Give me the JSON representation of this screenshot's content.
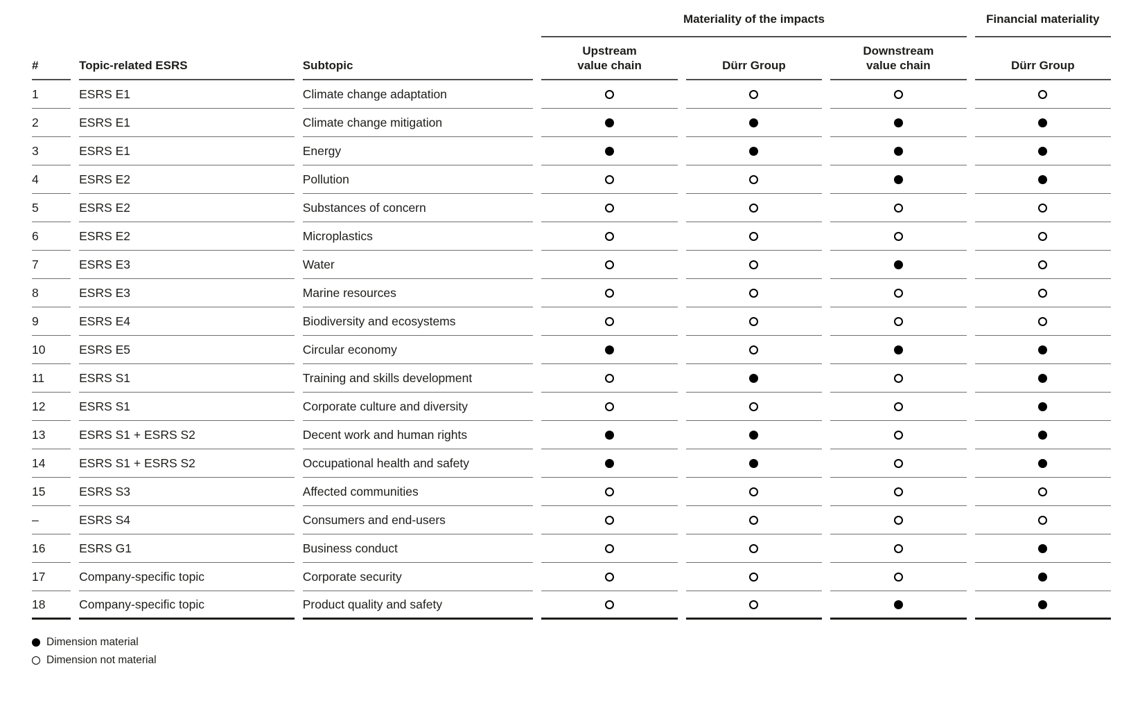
{
  "table": {
    "group_headers": {
      "impacts": "Materiality of the impacts",
      "financial": "Financial materiality"
    },
    "columns": {
      "num": "#",
      "esrs": "Topic-related ESRS",
      "subtopic": "Subtopic",
      "upstream_line1": "Upstream",
      "upstream_line2": "value chain",
      "durr_impacts": "Dürr Group",
      "downstream_line1": "Downstream",
      "downstream_line2": "value chain",
      "durr_financial": "Dürr Group"
    },
    "rows": [
      {
        "num": "1",
        "esrs": "ESRS E1",
        "subtopic": "Climate change adaptation",
        "dots": [
          "empty",
          "empty",
          "empty",
          "empty"
        ]
      },
      {
        "num": "2",
        "esrs": "ESRS E1",
        "subtopic": "Climate change mitigation",
        "dots": [
          "filled",
          "filled",
          "filled",
          "filled"
        ]
      },
      {
        "num": "3",
        "esrs": "ESRS E1",
        "subtopic": "Energy",
        "dots": [
          "filled",
          "filled",
          "filled",
          "filled"
        ]
      },
      {
        "num": "4",
        "esrs": "ESRS E2",
        "subtopic": "Pollution",
        "dots": [
          "empty",
          "empty",
          "filled",
          "filled"
        ]
      },
      {
        "num": "5",
        "esrs": "ESRS E2",
        "subtopic": "Substances of concern",
        "dots": [
          "empty",
          "empty",
          "empty",
          "empty"
        ]
      },
      {
        "num": "6",
        "esrs": "ESRS E2",
        "subtopic": "Microplastics",
        "dots": [
          "empty",
          "empty",
          "empty",
          "empty"
        ]
      },
      {
        "num": "7",
        "esrs": "ESRS E3",
        "subtopic": "Water",
        "dots": [
          "empty",
          "empty",
          "filled",
          "empty"
        ]
      },
      {
        "num": "8",
        "esrs": "ESRS E3",
        "subtopic": "Marine resources",
        "dots": [
          "empty",
          "empty",
          "empty",
          "empty"
        ]
      },
      {
        "num": "9",
        "esrs": "ESRS E4",
        "subtopic": "Biodiversity and ecosystems",
        "dots": [
          "empty",
          "empty",
          "empty",
          "empty"
        ]
      },
      {
        "num": "10",
        "esrs": "ESRS E5",
        "subtopic": "Circular economy",
        "dots": [
          "filled",
          "empty",
          "filled",
          "filled"
        ]
      },
      {
        "num": "11",
        "esrs": "ESRS S1",
        "subtopic": "Training and skills development",
        "dots": [
          "empty",
          "filled",
          "empty",
          "filled"
        ]
      },
      {
        "num": "12",
        "esrs": "ESRS S1",
        "subtopic": "Corporate culture and diversity",
        "dots": [
          "empty",
          "empty",
          "empty",
          "filled"
        ]
      },
      {
        "num": "13",
        "esrs": "ESRS S1 + ESRS S2",
        "subtopic": "Decent work and human rights",
        "dots": [
          "filled",
          "filled",
          "empty",
          "filled"
        ]
      },
      {
        "num": "14",
        "esrs": "ESRS S1 + ESRS S2",
        "subtopic": "Occupational health and safety",
        "dots": [
          "filled",
          "filled",
          "empty",
          "filled"
        ]
      },
      {
        "num": "15",
        "esrs": "ESRS S3",
        "subtopic": "Affected communities",
        "dots": [
          "empty",
          "empty",
          "empty",
          "empty"
        ]
      },
      {
        "num": "–",
        "esrs": "ESRS S4",
        "subtopic": "Consumers and end-users",
        "dots": [
          "empty",
          "empty",
          "empty",
          "empty"
        ]
      },
      {
        "num": "16",
        "esrs": "ESRS G1",
        "subtopic": "Business conduct",
        "dots": [
          "empty",
          "empty",
          "empty",
          "filled"
        ]
      },
      {
        "num": "17",
        "esrs": "Company-specific topic",
        "subtopic": "Corporate security",
        "dots": [
          "empty",
          "empty",
          "empty",
          "filled"
        ]
      },
      {
        "num": "18",
        "esrs": "Company-specific topic",
        "subtopic": "Product quality and safety",
        "dots": [
          "empty",
          "empty",
          "filled",
          "filled"
        ]
      }
    ]
  },
  "legend": {
    "material_label": "Dimension material",
    "not_material_label": "Dimension not material"
  },
  "colors": {
    "text": "#1d1d1b",
    "header_rule": "#4d4d4d",
    "row_rule": "#6e6e6e",
    "bottom_rule": "#1d1d1b",
    "dot": "#000000"
  }
}
